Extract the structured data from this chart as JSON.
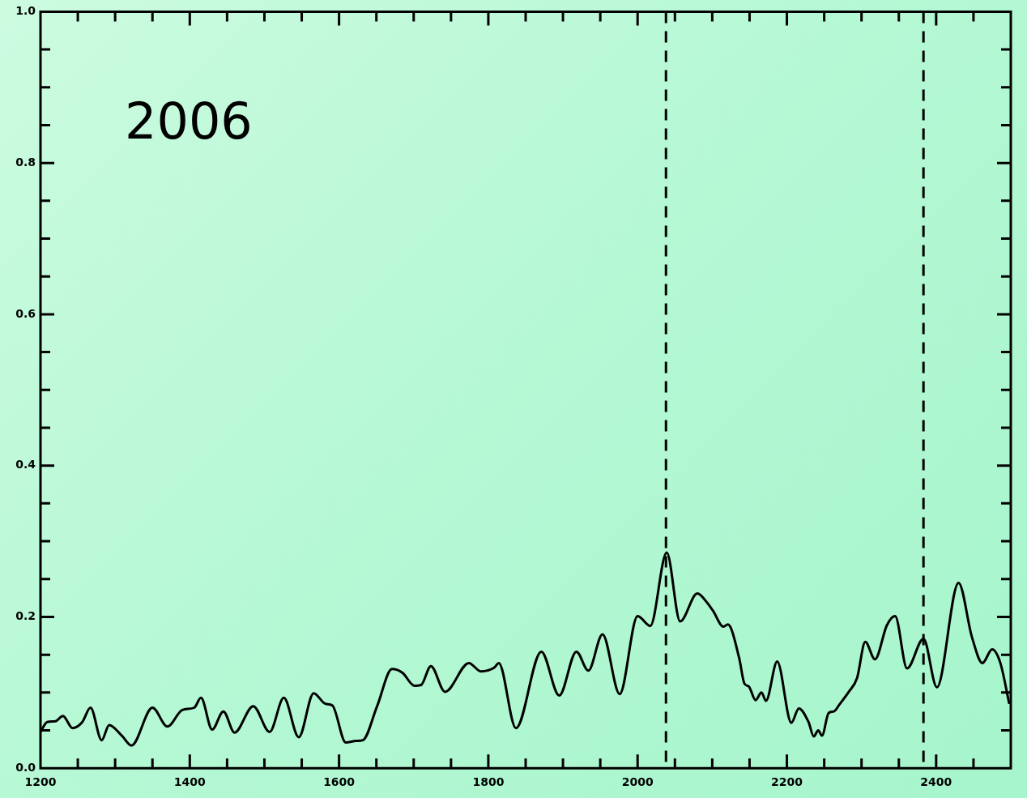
{
  "chart_data": {
    "type": "line",
    "annotations": [
      "2006"
    ],
    "color": "#000000",
    "grid": false,
    "legend": false,
    "marker": "none",
    "line_style": "solid",
    "x": [
      1200,
      1209,
      1220,
      1230,
      1243,
      1256,
      1267,
      1282,
      1292,
      1309,
      1322,
      1350,
      1370,
      1390,
      1406,
      1415,
      1430,
      1445,
      1460,
      1485,
      1507,
      1526,
      1546,
      1566,
      1582,
      1591,
      1609,
      1623,
      1632,
      1651,
      1671,
      1685,
      1701,
      1710,
      1723,
      1742,
      1774,
      1790,
      1808,
      1814,
      1837,
      1871,
      1895,
      1918,
      1934,
      1953,
      1976,
      2000,
      2017,
      2039,
      2057,
      2080,
      2093,
      2101,
      2115,
      2121,
      2136,
      2143,
      2149,
      2158,
      2166,
      2172,
      2187,
      2206,
      2216,
      2229,
      2236,
      2242,
      2247,
      2256,
      2263,
      2271,
      2283,
      2294,
      2305,
      2318,
      2334,
      2345,
      2361,
      2383,
      2401,
      2430,
      2448,
      2462,
      2475,
      2486,
      2498
    ],
    "values": [
      0.048,
      0.061,
      0.062,
      0.069,
      0.053,
      0.061,
      0.08,
      0.037,
      0.057,
      0.043,
      0.03,
      0.08,
      0.055,
      0.077,
      0.08,
      0.093,
      0.051,
      0.075,
      0.047,
      0.082,
      0.048,
      0.093,
      0.041,
      0.099,
      0.085,
      0.083,
      0.034,
      0.036,
      0.037,
      0.082,
      0.131,
      0.126,
      0.109,
      0.11,
      0.135,
      0.101,
      0.139,
      0.128,
      0.133,
      0.139,
      0.053,
      0.154,
      0.096,
      0.154,
      0.129,
      0.177,
      0.098,
      0.201,
      0.188,
      0.285,
      0.194,
      0.231,
      0.219,
      0.208,
      0.187,
      0.19,
      0.146,
      0.112,
      0.108,
      0.09,
      0.1,
      0.089,
      0.141,
      0.06,
      0.079,
      0.061,
      0.042,
      0.05,
      0.043,
      0.073,
      0.075,
      0.085,
      0.101,
      0.119,
      0.167,
      0.144,
      0.189,
      0.201,
      0.132,
      0.171,
      0.107,
      0.245,
      0.173,
      0.139,
      0.157,
      0.139,
      0.085
    ],
    "xlim": [
      1200,
      2500
    ],
    "xticks": [
      1200,
      {
        "value": 1250,
        "label": null
      },
      1400,
      {
        "value": 1300,
        "label": null
      },
      {
        "value": 1350,
        "label": null
      },
      {
        "value": 1450,
        "label": null
      },
      {
        "value": 1500,
        "label": null
      },
      {
        "value": 1550,
        "label": null
      },
      1600,
      {
        "value": 1650,
        "label": null
      },
      {
        "value": 1700,
        "label": null
      },
      {
        "value": 1750,
        "label": null
      },
      1800,
      {
        "value": 1850,
        "label": null
      },
      {
        "value": 1900,
        "label": null
      },
      {
        "value": 1950,
        "label": null
      },
      2000,
      {
        "value": 2050,
        "label": null
      },
      {
        "value": 2100,
        "label": null
      },
      {
        "value": 2150,
        "label": null
      },
      2200,
      {
        "value": 2250,
        "label": null
      },
      {
        "value": 2300,
        "label": null
      },
      {
        "value": 2350,
        "label": null
      },
      2400,
      {
        "value": 2450,
        "label": null
      },
      {
        "value": 2500,
        "label": null
      }
    ],
    "ylim": [
      0,
      1
    ],
    "yticks": [
      {
        "value": 0,
        "label": "0.0"
      },
      {
        "value": 0.05,
        "label": null
      },
      {
        "value": 0.1,
        "label": null
      },
      {
        "value": 0.15,
        "label": null
      },
      0.2,
      {
        "value": 0.25,
        "label": null
      },
      {
        "value": 0.3,
        "label": null
      },
      {
        "value": 0.35,
        "label": null
      },
      0.4,
      {
        "value": 0.45,
        "label": null
      },
      {
        "value": 0.5,
        "label": null
      },
      {
        "value": 0.55,
        "label": null
      },
      0.6,
      {
        "value": 0.65,
        "label": null
      },
      {
        "value": 0.7,
        "label": null
      },
      {
        "value": 0.75,
        "label": null
      },
      0.8,
      {
        "value": 0.85,
        "label": null
      },
      {
        "value": 0.9,
        "label": null
      },
      {
        "value": 0.95,
        "label": null
      },
      {
        "value": 1,
        "label": "1.0"
      }
    ],
    "ref_lines": [
      {
        "axis": "x",
        "value": 2038,
        "color": "#000000",
        "line_style": "dashed"
      },
      {
        "axis": "x",
        "value": 2383,
        "color": "#000000",
        "line_style": "dashed"
      }
    ]
  }
}
